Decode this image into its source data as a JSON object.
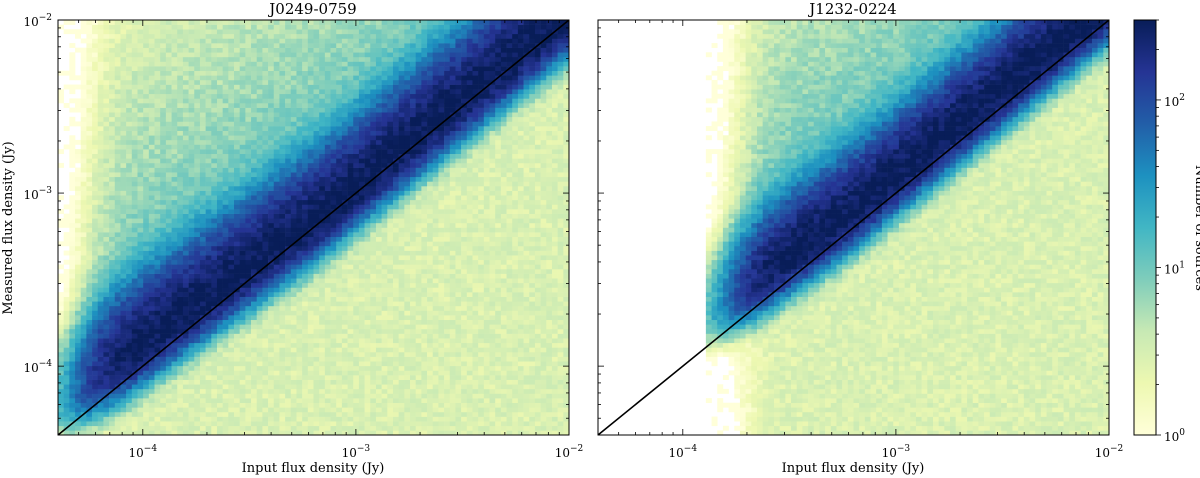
{
  "chart_data": [
    {
      "type": "heatmap",
      "title": "J0249-0759",
      "xlabel": "Input flux density (Jy)",
      "ylabel": "Measured flux density (Jy)",
      "xscale": "log",
      "yscale": "log",
      "xlim": [
        4e-05,
        0.01
      ],
      "ylim": [
        4e-05,
        0.01
      ],
      "x_ticks": [
        "10",
        "10",
        "10"
      ],
      "x_tick_exponents": [
        "−4",
        "−3",
        "−2"
      ],
      "y_ticks": [
        "10",
        "10",
        "10"
      ],
      "y_tick_exponents": [
        "−4",
        "−3",
        "−2"
      ],
      "reference_line": {
        "label": "",
        "x": [
          4e-05,
          0.01
        ],
        "y": [
          4e-05,
          0.01
        ]
      },
      "density_model": {
        "flux_min": 6e-05,
        "ridge_offset_log10": 0.02,
        "scatter_log10": 0.13,
        "peak_count": 300
      }
    },
    {
      "type": "heatmap",
      "title": "J1232-0224",
      "xlabel": "Input flux density (Jy)",
      "ylabel": "",
      "xscale": "log",
      "yscale": "log",
      "xlim": [
        4e-05,
        0.01
      ],
      "ylim": [
        4e-05,
        0.01
      ],
      "x_ticks": [
        "10",
        "10",
        "10"
      ],
      "x_tick_exponents": [
        "−4",
        "−3",
        "−2"
      ],
      "reference_line": {
        "label": "",
        "x": [
          4e-05,
          0.01
        ],
        "y": [
          4e-05,
          0.01
        ]
      },
      "density_model": {
        "flux_min": 0.0002,
        "ridge_offset_log10": 0.08,
        "scatter_log10": 0.12,
        "peak_count": 300
      }
    }
  ],
  "colorbar": {
    "label": "Number of sources",
    "scale": "log",
    "range": [
      1,
      300
    ],
    "ticks": [
      "10",
      "10",
      "10"
    ],
    "tick_exponents": [
      "0",
      "1",
      "2"
    ],
    "colors": [
      "#ffffd9",
      "#edf8b1",
      "#c7e9b4",
      "#7fcdbb",
      "#41b6c4",
      "#1d91c0",
      "#225ea8",
      "#253494",
      "#081d58"
    ]
  }
}
